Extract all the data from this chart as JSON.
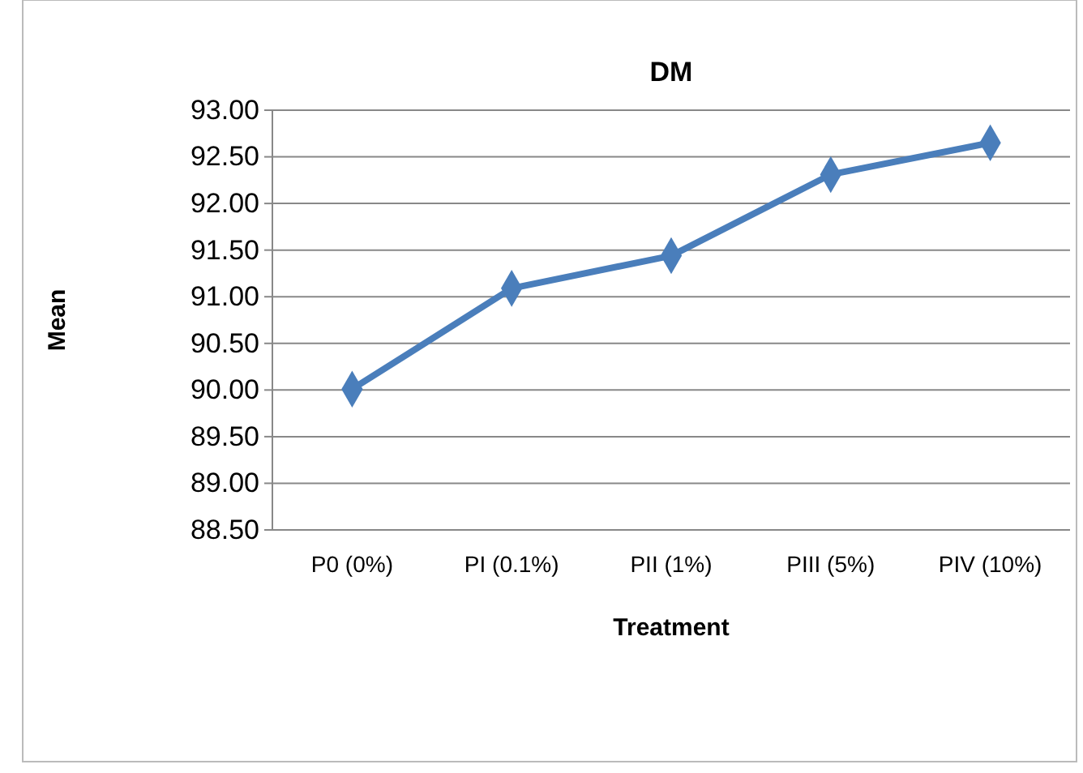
{
  "chart_data": {
    "type": "line",
    "title": "DM",
    "xlabel": "Treatment",
    "ylabel": "Mean",
    "categories": [
      "P0 (0%)",
      "PI (0.1%)",
      "PII (1%)",
      "PIII (5%)",
      "PIV (10%)"
    ],
    "series": [
      {
        "color": "#4a7ebb",
        "values": [
          90.01,
          91.09,
          91.44,
          92.31,
          92.65
        ]
      }
    ],
    "ylim": [
      88.5,
      93
    ],
    "yticks": [
      {
        "value": 88.5,
        "label": "88.50"
      },
      {
        "value": 89,
        "label": "89.00"
      },
      {
        "value": 89.5,
        "label": "89.50"
      },
      {
        "value": 90,
        "label": "90.00"
      },
      {
        "value": 90.5,
        "label": "90.50"
      },
      {
        "value": 91,
        "label": "91.00"
      },
      {
        "value": 91.5,
        "label": "91.50"
      },
      {
        "value": 92,
        "label": "92.00"
      },
      {
        "value": 92.5,
        "label": "92.50"
      },
      {
        "value": 93,
        "label": "93.00"
      }
    ],
    "grid": "y",
    "marker": "diamond",
    "line_style": "solid"
  }
}
